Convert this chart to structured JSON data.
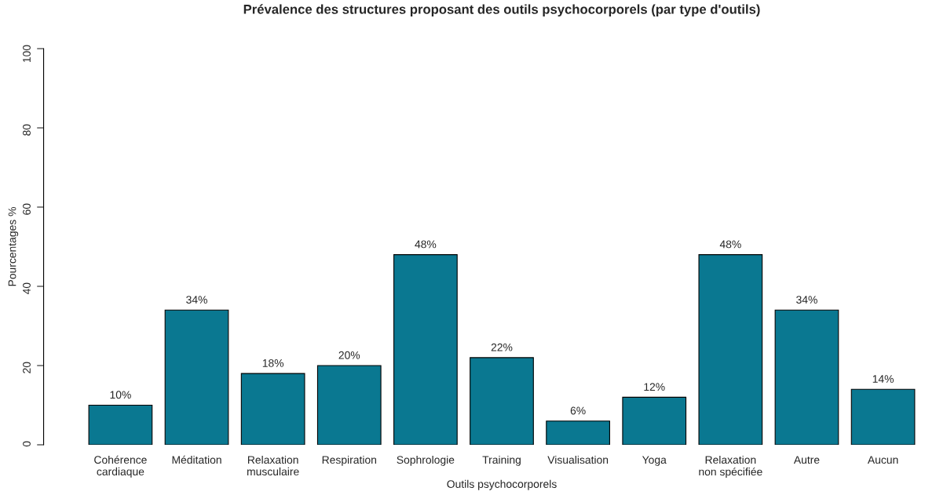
{
  "chart_data": {
    "type": "bar",
    "title": "Prévalence des structures proposant des outils psychocorporels (par type d'outils)",
    "xlabel": "Outils psychocorporels",
    "ylabel": "Pourcentages %",
    "categories": [
      "Cohérence\ncardiaque",
      "Méditation",
      "Relaxation\nmusculaire",
      "Respiration",
      "Sophrologie",
      "Training",
      "Visualisation",
      "Yoga",
      "Relaxation\nnon spécifiée",
      "Autre",
      "Aucun"
    ],
    "values": [
      10,
      34,
      18,
      20,
      48,
      22,
      6,
      12,
      48,
      34,
      14
    ],
    "value_labels": [
      "10%",
      "34%",
      "18%",
      "20%",
      "48%",
      "22%",
      "6%",
      "12%",
      "48%",
      "34%",
      "14%"
    ],
    "color": "#0a7891",
    "ylim": [
      0,
      100
    ],
    "yticks": [
      0,
      20,
      40,
      60,
      80,
      100
    ],
    "grid": false,
    "legend": false
  }
}
